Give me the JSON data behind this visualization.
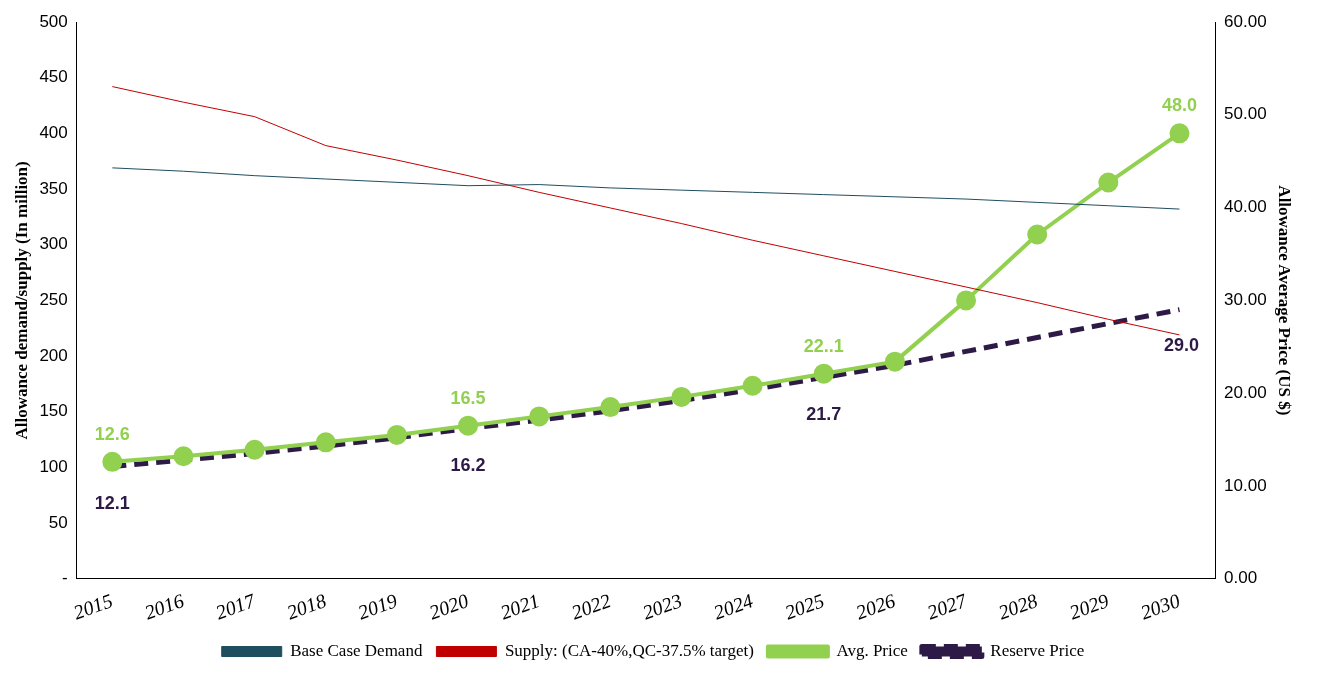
{
  "chart_data": {
    "type": "line",
    "categories": [
      "2015",
      "2016",
      "2017",
      "2018",
      "2019",
      "2020",
      "2021",
      "2022",
      "2023",
      "2024",
      "2025",
      "2026",
      "2027",
      "2028",
      "2029",
      "2030"
    ],
    "ylabel": "Allowance demand/supply (In million)",
    "y2label": "Allowance Average Price (US $)",
    "ylim": [
      0,
      500
    ],
    "yticks": [
      {
        "value": 0,
        "label": "-"
      },
      50,
      100,
      150,
      200,
      250,
      300,
      350,
      400,
      450,
      500
    ],
    "y2lim": [
      0,
      60
    ],
    "y2ticks": [
      {
        "value": 0,
        "label": "0.00"
      },
      {
        "value": 10,
        "label": "10.00"
      },
      {
        "value": 20,
        "label": "20.00"
      },
      {
        "value": 30,
        "label": "30.00"
      },
      {
        "value": 40,
        "label": "40.00"
      },
      {
        "value": 50,
        "label": "50.00"
      },
      {
        "value": 60,
        "label": "60.00"
      }
    ],
    "grid": false,
    "legend": "bottom",
    "series": [
      {
        "name": "Base Case Demand",
        "color": "#1f4e5f",
        "marker": "none",
        "line_style": "solid",
        "values": [
          369,
          366,
          362,
          359,
          356,
          353,
          354,
          351,
          349,
          347,
          345,
          343,
          341,
          338,
          335,
          332
        ]
      },
      {
        "name": "Supply: (CA-40%,QC-37.5% target)",
        "color": "#c00000",
        "marker": "none",
        "line_style": "solid",
        "values": [
          442,
          428,
          415,
          389,
          376,
          362,
          347,
          333,
          319,
          304,
          290,
          276,
          262,
          248,
          233,
          219
        ]
      },
      {
        "name": "Avg. Price",
        "color": "#92d050",
        "axis": "y2",
        "marker": "circle",
        "line_style": "solid",
        "values": [
          12.6,
          13.2,
          13.9,
          14.7,
          15.5,
          16.5,
          17.5,
          18.5,
          19.6,
          20.8,
          22.1,
          23.4,
          30.0,
          37.1,
          42.7,
          48.0
        ],
        "value_labels": [
          "12.6",
          null,
          null,
          null,
          null,
          "16.5",
          null,
          null,
          null,
          null,
          "22..1",
          null,
          null,
          null,
          null,
          "48.0"
        ]
      },
      {
        "name": "Reserve Price",
        "color": "#2e1a47",
        "axis": "y2",
        "marker": "none",
        "line_style": "dashed",
        "values": [
          12.1,
          12.8,
          13.5,
          14.3,
          15.2,
          16.2,
          17.1,
          18.1,
          19.2,
          20.4,
          21.7,
          23.0,
          24.5,
          26.0,
          27.5,
          29.0
        ],
        "value_labels": [
          "12.1",
          null,
          null,
          null,
          null,
          "16.2",
          null,
          null,
          null,
          null,
          "21.7",
          null,
          null,
          null,
          null,
          "29.0"
        ]
      }
    ]
  }
}
